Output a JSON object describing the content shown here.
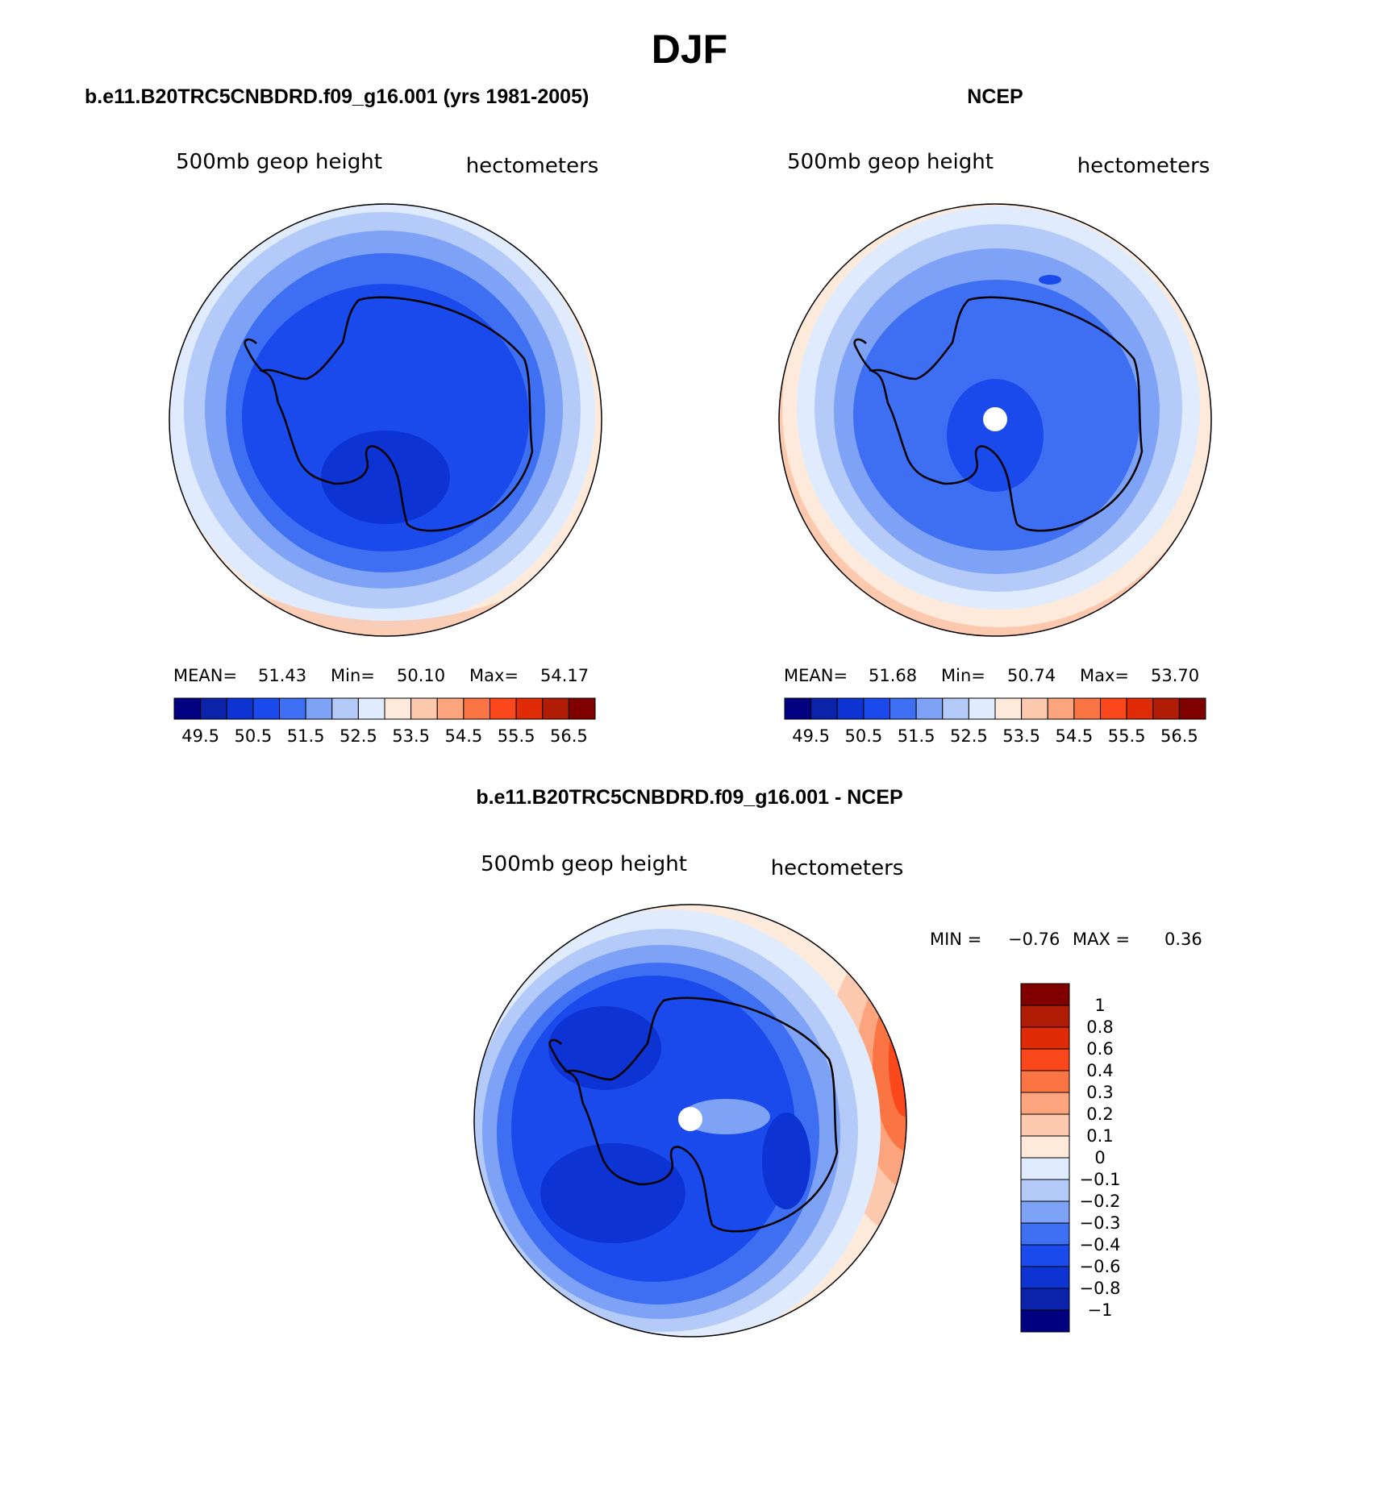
{
  "figure_title": "DJF",
  "colors": {
    "ramp15": [
      "#000080",
      "#0a23aa",
      "#0d33d3",
      "#1a4aeb",
      "#3e6ff2",
      "#7ea2f5",
      "#b4cbfa",
      "#e0ecfd",
      "#feeadb",
      "#fcc8ae",
      "#fca47d",
      "#fb7544",
      "#fa471c",
      "#e02c06",
      "#b01c06",
      "#800000"
    ],
    "diff_ramp": [
      "#000080",
      "#0a23aa",
      "#0d33d3",
      "#1a4aeb",
      "#3e6ff2",
      "#7ea2f5",
      "#b4cbfa",
      "#e0ecfd",
      "#feeadb",
      "#fcc8ae",
      "#fca47d",
      "#fb7544",
      "#fa471c",
      "#e02c06",
      "#b01c06",
      "#800000"
    ]
  },
  "panels": {
    "model": {
      "header": "b.e11.B20TRC5CNBDRD.f09_g16.001 (yrs 1981-2005)",
      "left_label": "500mb geop height",
      "right_label": "hectometers",
      "mean_label": "MEAN=",
      "mean_value": "51.43",
      "min_label": "Min=",
      "min_value": "50.10",
      "max_label": "Max=",
      "max_value": "54.17",
      "ticks": [
        "49.5",
        "50.5",
        "51.5",
        "52.5",
        "53.5",
        "54.5",
        "55.5",
        "56.5"
      ]
    },
    "obs": {
      "header": "NCEP",
      "left_label": "500mb geop height",
      "right_label": "hectometers",
      "mean_label": "MEAN=",
      "mean_value": "51.68",
      "min_label": "Min=",
      "min_value": "50.74",
      "max_label": "Max=",
      "max_value": "53.70",
      "ticks": [
        "49.5",
        "50.5",
        "51.5",
        "52.5",
        "53.5",
        "54.5",
        "55.5",
        "56.5"
      ]
    },
    "diff": {
      "header": "b.e11.B20TRC5CNBDRD.f09_g16.001 - NCEP",
      "left_label": "500mb geop height",
      "right_label": "hectometers",
      "min_label": "MIN =",
      "min_value": "−0.76",
      "max_label": "MAX =",
      "max_value": "0.36",
      "ticks": [
        "1",
        "0.8",
        "0.6",
        "0.4",
        "0.3",
        "0.2",
        "0.1",
        "0",
        "−0.1",
        "−0.2",
        "−0.3",
        "−0.4",
        "−0.6",
        "−0.8",
        "−1"
      ]
    }
  },
  "chart_data": [
    {
      "type": "heatmap",
      "title": "b.e11.B20TRC5CNBDRD.f09_g16.001 (yrs 1981-2005)",
      "field": "500mb geop height",
      "units": "hectometers",
      "season": "DJF",
      "projection": "south polar stereographic",
      "levels": [
        49.5,
        50,
        50.5,
        51,
        51.5,
        52,
        52.5,
        53,
        53.5,
        54,
        54.5,
        55,
        55.5,
        56,
        56.5
      ],
      "mean": 51.43,
      "min": 50.1,
      "max": 54.17
    },
    {
      "type": "heatmap",
      "title": "NCEP",
      "field": "500mb geop height",
      "units": "hectometers",
      "season": "DJF",
      "projection": "south polar stereographic",
      "levels": [
        49.5,
        50,
        50.5,
        51,
        51.5,
        52,
        52.5,
        53,
        53.5,
        54,
        54.5,
        55,
        55.5,
        56,
        56.5
      ],
      "mean": 51.68,
      "min": 50.74,
      "max": 53.7
    },
    {
      "type": "heatmap",
      "title": "b.e11.B20TRC5CNBDRD.f09_g16.001 - NCEP",
      "field": "500mb geop height",
      "units": "hectometers",
      "season": "DJF",
      "projection": "south polar stereographic",
      "levels": [
        -1,
        -0.8,
        -0.6,
        -0.4,
        -0.3,
        -0.2,
        -0.1,
        0,
        0.1,
        0.2,
        0.3,
        0.4,
        0.6,
        0.8,
        1
      ],
      "min": -0.76,
      "max": 0.36
    }
  ]
}
